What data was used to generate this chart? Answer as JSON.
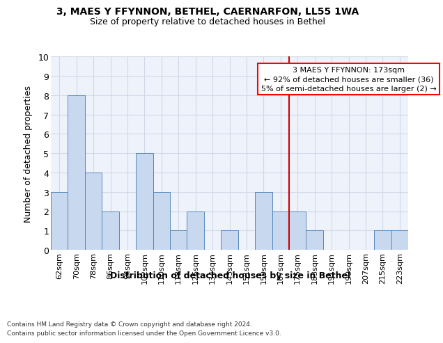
{
  "title1": "3, MAES Y FFYNNON, BETHEL, CAERNARFON, LL55 1WA",
  "title2": "Size of property relative to detached houses in Bethel",
  "xlabel": "Distribution of detached houses by size in Bethel",
  "ylabel": "Number of detached properties",
  "categories": [
    "62sqm",
    "70sqm",
    "78sqm",
    "86sqm",
    "94sqm",
    "102sqm",
    "110sqm",
    "118sqm",
    "126sqm",
    "134sqm",
    "143sqm",
    "151sqm",
    "159sqm",
    "167sqm",
    "175sqm",
    "183sqm",
    "191sqm",
    "199sqm",
    "207sqm",
    "215sqm",
    "223sqm"
  ],
  "values": [
    3,
    8,
    4,
    2,
    0,
    5,
    3,
    1,
    2,
    0,
    1,
    0,
    3,
    2,
    2,
    1,
    0,
    0,
    0,
    1,
    1
  ],
  "bar_color": "#c8d8ef",
  "bar_edge_color": "#5588bb",
  "grid_color": "#d0d8e8",
  "annotation_line1": "3 MAES Y FFYNNON: 173sqm",
  "annotation_line2": "← 92% of detached houses are smaller (36)",
  "annotation_line3": "5% of semi-detached houses are larger (2) →",
  "vline_index": 14,
  "vline_color": "#cc0000",
  "ylim_max": 10,
  "footer_line1": "Contains HM Land Registry data © Crown copyright and database right 2024.",
  "footer_line2": "Contains public sector information licensed under the Open Government Licence v3.0.",
  "bg_color": "#ffffff",
  "plot_bg_color": "#eef2fb"
}
